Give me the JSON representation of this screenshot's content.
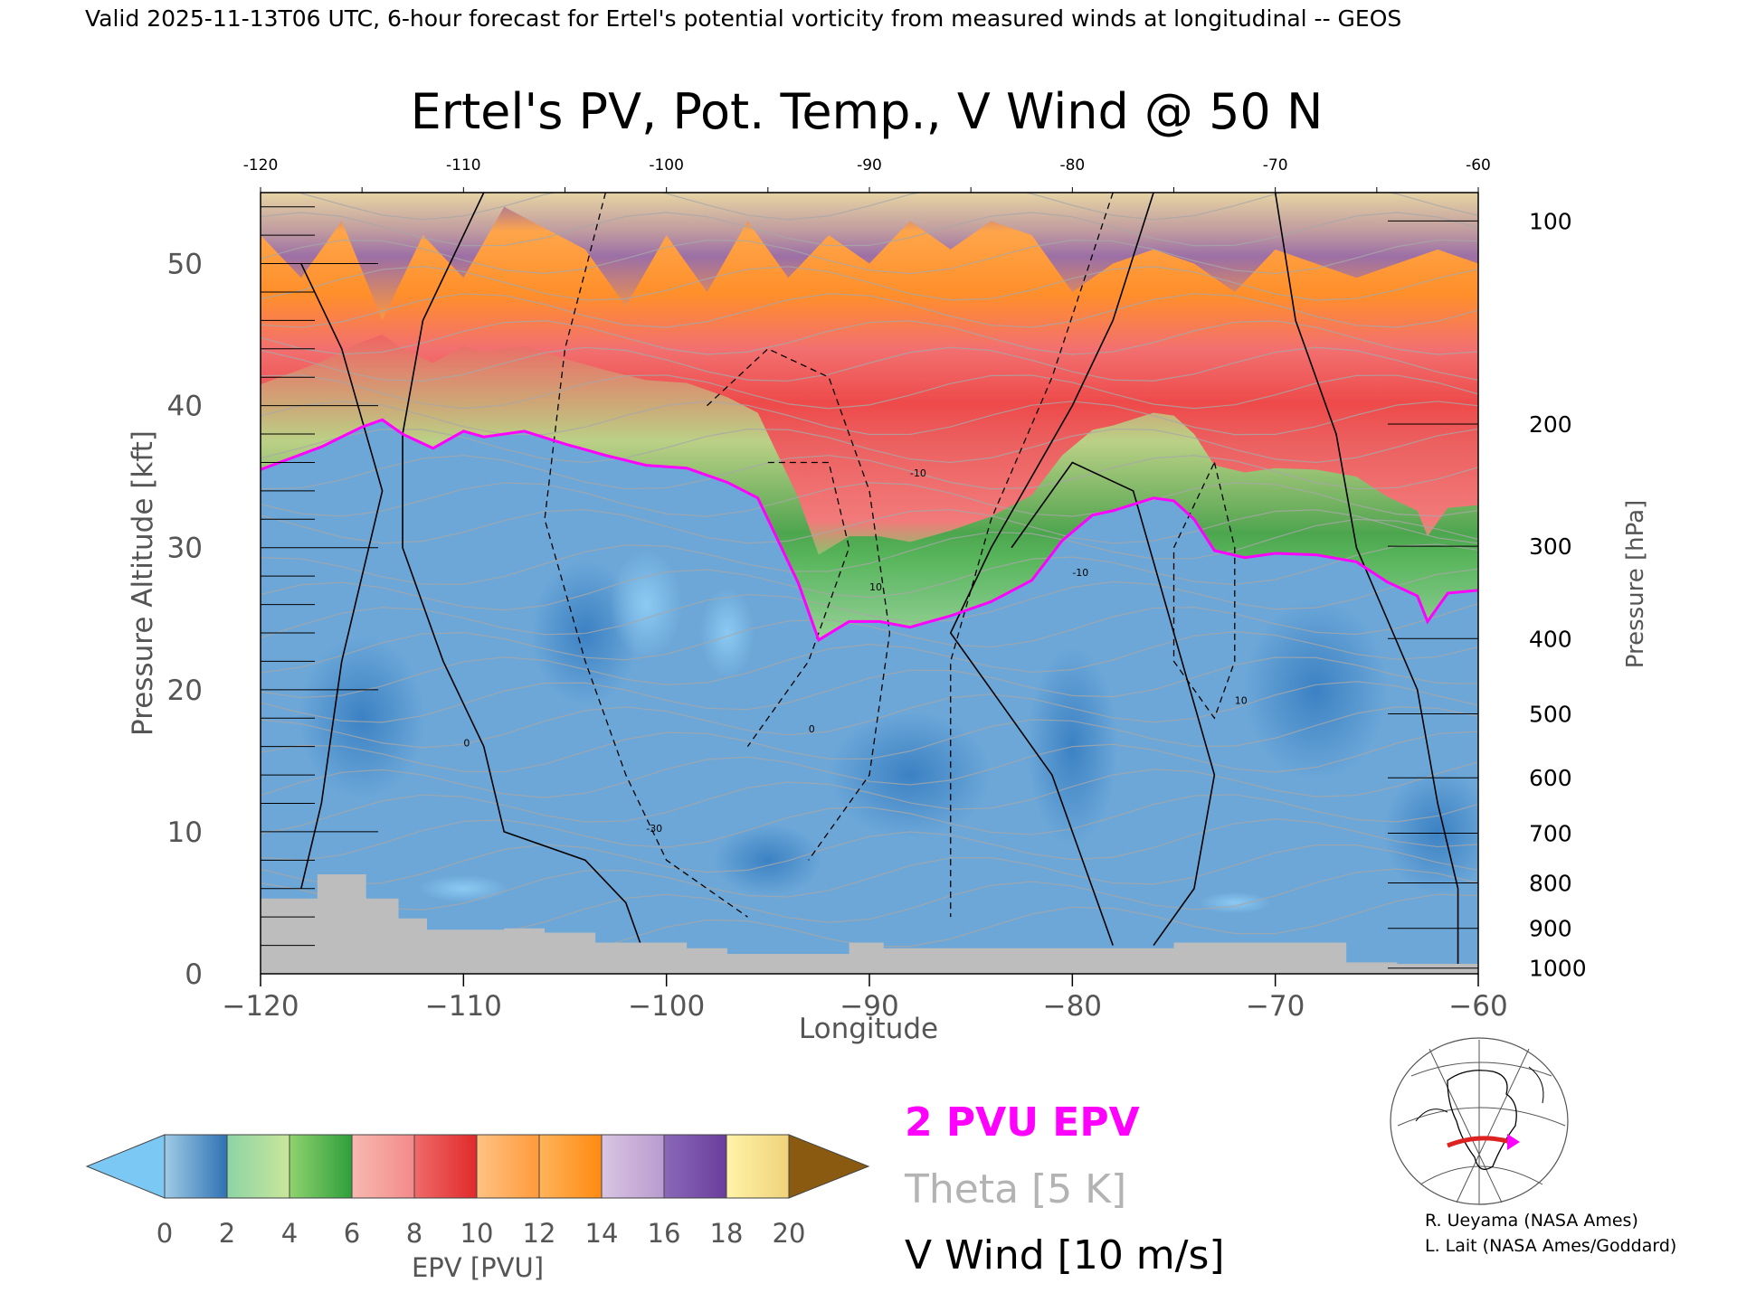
{
  "page": {
    "header_text": "Valid 2025-11-13T06 UTC, 6-hour forecast for Ertel's potential vorticity from measured winds at longitudinal -- GEOS",
    "credits": [
      "R. Ueyama (NASA Ames)",
      "L. Lait (NASA Ames/Goddard)"
    ]
  },
  "chart_data": {
    "type": "heatmap",
    "title": "Ertel's PV, Pot. Temp., V Wind @ 50 N",
    "xlabel": "Longitude",
    "ylabel": "Pressure Altitude [kft]",
    "y2label": "Pressure [hPa]",
    "xlim": [
      -120,
      -60
    ],
    "ylim": [
      0,
      55
    ],
    "x_ticks": [
      -120,
      -110,
      -100,
      -90,
      -80,
      -70,
      -60
    ],
    "x_tick_labels": [
      "−120",
      "−110",
      "−100",
      "−90",
      "−80",
      "−70",
      "−60"
    ],
    "top_x_tick_labels": [
      "-120",
      "-110",
      "-100",
      "-90",
      "-80",
      "-70",
      "-60"
    ],
    "y_ticks": [
      0,
      10,
      20,
      30,
      40,
      50
    ],
    "y_tick_labels": [
      "0",
      "10",
      "20",
      "30",
      "40",
      "50"
    ],
    "pressure_ticks": [
      {
        "label": "100",
        "kft": 53.0
      },
      {
        "label": "200",
        "kft": 38.7
      },
      {
        "label": "300",
        "kft": 30.1
      },
      {
        "label": "400",
        "kft": 23.6
      },
      {
        "label": "500",
        "kft": 18.3
      },
      {
        "label": "600",
        "kft": 13.8
      },
      {
        "label": "700",
        "kft": 9.9
      },
      {
        "label": "800",
        "kft": 6.4
      },
      {
        "label": "900",
        "kft": 3.2
      },
      {
        "label": "1000",
        "kft": 0.4
      }
    ],
    "two_pvu_line": [
      [
        -120,
        35.5
      ],
      [
        -118.5,
        36.3
      ],
      [
        -117,
        37.1
      ],
      [
        -115,
        38.5
      ],
      [
        -114,
        39.0
      ],
      [
        -113,
        38.0
      ],
      [
        -111.5,
        37.0
      ],
      [
        -110,
        38.2
      ],
      [
        -109,
        37.8
      ],
      [
        -107,
        38.2
      ],
      [
        -105,
        37.3
      ],
      [
        -103,
        36.5
      ],
      [
        -101,
        35.8
      ],
      [
        -99,
        35.6
      ],
      [
        -97,
        34.6
      ],
      [
        -95.5,
        33.5
      ],
      [
        -94.5,
        30.5
      ],
      [
        -93.5,
        27.5
      ],
      [
        -92.5,
        23.5
      ],
      [
        -91,
        24.8
      ],
      [
        -89.5,
        24.8
      ],
      [
        -88,
        24.4
      ],
      [
        -86,
        25.2
      ],
      [
        -84,
        26.2
      ],
      [
        -82,
        27.7
      ],
      [
        -80.5,
        30.5
      ],
      [
        -79,
        32.3
      ],
      [
        -78,
        32.6
      ],
      [
        -76,
        33.5
      ],
      [
        -75,
        33.3
      ],
      [
        -74,
        32.0
      ],
      [
        -73,
        29.8
      ],
      [
        -71.5,
        29.3
      ],
      [
        -70,
        29.6
      ],
      [
        -68,
        29.5
      ],
      [
        -66,
        29.0
      ],
      [
        -64.5,
        27.6
      ],
      [
        -63,
        26.6
      ],
      [
        -62.5,
        24.8
      ],
      [
        -61.5,
        26.8
      ],
      [
        -60,
        27.0
      ]
    ],
    "orography_steps": [
      [
        -120,
        5.3
      ],
      [
        -117.2,
        7.0
      ],
      [
        -114.8,
        5.3
      ],
      [
        -113.2,
        3.9
      ],
      [
        -111.8,
        3.1
      ],
      [
        -108,
        3.2
      ],
      [
        -106,
        2.9
      ],
      [
        -103.5,
        2.2
      ],
      [
        -99,
        1.8
      ],
      [
        -97,
        1.4
      ],
      [
        -91,
        2.2
      ],
      [
        -89.3,
        1.8
      ],
      [
        -75,
        2.2
      ],
      [
        -70.5,
        2.2
      ],
      [
        -66.5,
        0.8
      ],
      [
        -64,
        0.7
      ],
      [
        -60,
        0.7
      ]
    ],
    "contour_labels": [
      "0",
      "10",
      "-10",
      "-30"
    ],
    "legend": [
      {
        "label": "2 PVU EPV",
        "color": "#ff00ff"
      },
      {
        "label": "Theta [5 K]",
        "color": "#b3b3b3"
      },
      {
        "label": "V Wind [10 m/s]",
        "color": "#000000"
      }
    ],
    "colorbar": {
      "label": "EPV [PVU]",
      "ticks": [
        "0",
        "2",
        "4",
        "6",
        "8",
        "10",
        "12",
        "14",
        "16",
        "18",
        "20"
      ],
      "under_color": "#7cc8f5",
      "over_color": "#8a5a10",
      "segments": [
        [
          "#9fcbe6",
          "#2f72b3"
        ],
        [
          "#8dd4a6",
          "#c9e69a"
        ],
        [
          "#8fd36f",
          "#2e9f3a"
        ],
        [
          "#f7b9b0",
          "#f38a8a"
        ],
        [
          "#f06a6a",
          "#e02a2a"
        ],
        [
          "#ffc283",
          "#ff9a3c"
        ],
        [
          "#ffb35a",
          "#ff8a10"
        ],
        [
          "#d9c5e3",
          "#b99bcf"
        ],
        [
          "#8a68b8",
          "#6a3d9c"
        ],
        [
          "#fff3a8",
          "#f0d27a"
        ]
      ]
    }
  }
}
